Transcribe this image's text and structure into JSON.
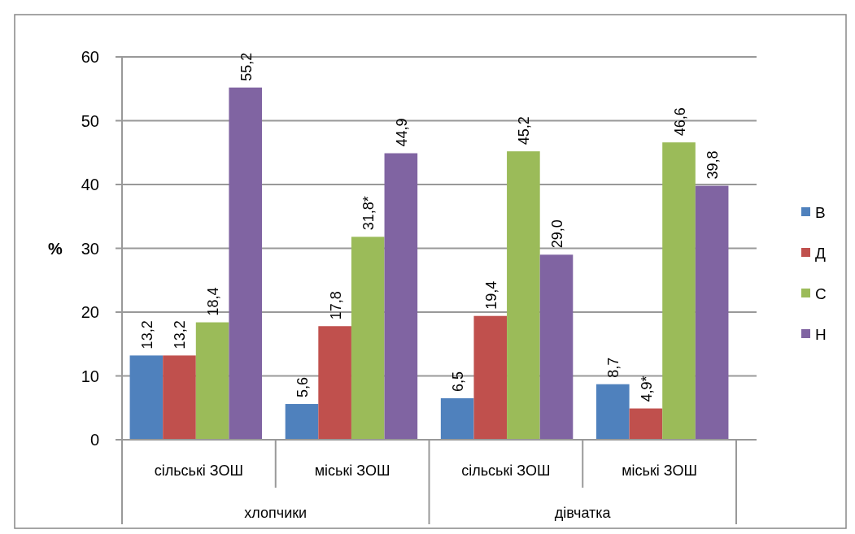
{
  "chart_data": {
    "type": "bar",
    "ylabel": "%",
    "categories": [
      "сільські ЗОШ",
      "міські ЗОШ",
      "сільські ЗОШ",
      "міські ЗОШ"
    ],
    "annotations": [
      "хлопчики",
      "дівчатка"
    ],
    "series": [
      {
        "name": "В",
        "color": "#4f81bd",
        "values": [
          13.2,
          5.6,
          6.5,
          8.7
        ],
        "value_labels": [
          "13,2",
          "5,6",
          "6,5",
          "8,7"
        ]
      },
      {
        "name": "Д",
        "color": "#c0504d",
        "values": [
          13.2,
          17.8,
          19.4,
          4.9
        ],
        "value_labels": [
          "13,2",
          "17,8",
          "19,4",
          "4,9*"
        ]
      },
      {
        "name": "С",
        "color": "#9bbb59",
        "values": [
          18.4,
          31.8,
          45.2,
          46.6
        ],
        "value_labels": [
          "18,4",
          "31,8*",
          "45,2",
          "46,6"
        ]
      },
      {
        "name": "Н",
        "color": "#8064a2",
        "values": [
          55.2,
          44.9,
          29.0,
          39.8
        ],
        "value_labels": [
          "55,2",
          "44,9",
          "29,0",
          "39,8"
        ]
      }
    ],
    "ylim": [
      0,
      60
    ],
    "yticks": [
      0,
      10,
      20,
      30,
      40,
      50,
      60
    ],
    "grid": "y",
    "legend": "right"
  }
}
